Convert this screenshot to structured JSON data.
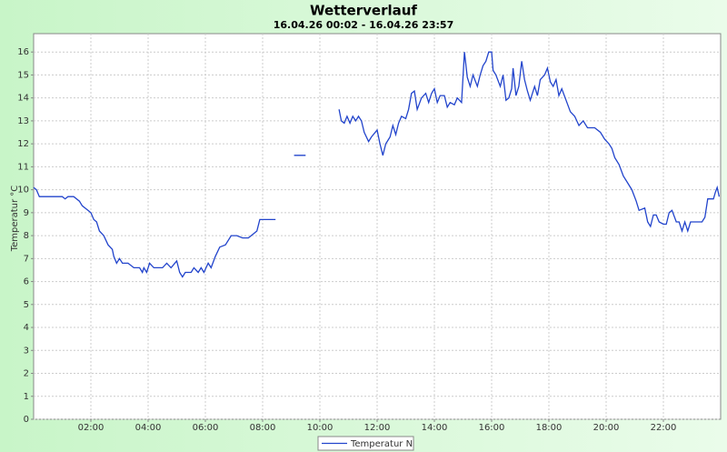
{
  "chart_data": {
    "type": "line",
    "title": "Wetterverlauf",
    "subtitle": "16.04.26 00:02 - 16.04.26 23:57",
    "y_label": "Temperatur °C",
    "x": [
      0.0,
      0.1,
      0.2,
      0.5,
      1.0,
      1.1,
      1.2,
      1.4,
      1.6,
      1.7,
      1.9,
      2.0,
      2.1,
      2.2,
      2.3,
      2.45,
      2.6,
      2.75,
      2.8,
      2.9,
      3.0,
      3.1,
      3.3,
      3.5,
      3.7,
      3.8,
      3.85,
      3.95,
      4.05,
      4.2,
      4.5,
      4.65,
      4.8,
      5.0,
      5.1,
      5.2,
      5.3,
      5.5,
      5.6,
      5.75,
      5.85,
      5.95,
      6.1,
      6.2,
      6.35,
      6.5,
      6.7,
      6.9,
      7.1,
      7.3,
      7.5,
      7.6,
      7.8,
      7.9,
      8.3,
      8.45,
      8.8,
      9.1,
      9.5,
      10.0,
      10.67,
      10.75,
      10.85,
      10.95,
      11.05,
      11.15,
      11.25,
      11.35,
      11.45,
      11.55,
      11.7,
      11.8,
      12.0,
      12.1,
      12.2,
      12.3,
      12.45,
      12.55,
      12.65,
      12.75,
      12.85,
      13.0,
      13.1,
      13.2,
      13.3,
      13.4,
      13.55,
      13.7,
      13.8,
      13.9,
      14.0,
      14.1,
      14.2,
      14.35,
      14.45,
      14.55,
      14.7,
      14.8,
      14.95,
      15.05,
      15.15,
      15.25,
      15.35,
      15.5,
      15.6,
      15.7,
      15.8,
      15.9,
      16.0,
      16.05,
      16.15,
      16.3,
      16.4,
      16.5,
      16.6,
      16.7,
      16.75,
      16.85,
      16.95,
      17.05,
      17.15,
      17.25,
      17.35,
      17.5,
      17.6,
      17.7,
      17.85,
      17.95,
      18.05,
      18.15,
      18.25,
      18.35,
      18.45,
      18.6,
      18.75,
      18.9,
      19.05,
      19.2,
      19.35,
      19.6,
      19.8,
      19.95,
      20.1,
      20.2,
      20.3,
      20.45,
      20.6,
      20.75,
      20.9,
      21.05,
      21.15,
      21.35,
      21.45,
      21.55,
      21.65,
      21.75,
      21.85,
      22.0,
      22.1,
      22.2,
      22.3,
      22.45,
      22.55,
      22.65,
      22.75,
      22.85,
      22.95,
      23.1,
      23.35,
      23.45,
      23.55,
      23.75,
      23.82,
      23.88,
      23.95
    ],
    "series": [
      {
        "name": "Temperatur N",
        "color": "#2244cc",
        "values": [
          10.1,
          10.0,
          9.7,
          9.7,
          9.7,
          9.6,
          9.7,
          9.7,
          9.5,
          9.3,
          9.1,
          9.0,
          8.7,
          8.6,
          8.2,
          8.0,
          7.6,
          7.4,
          7.1,
          6.8,
          7.0,
          6.8,
          6.8,
          6.6,
          6.6,
          6.4,
          6.6,
          6.4,
          6.8,
          6.6,
          6.6,
          6.8,
          6.6,
          6.9,
          6.4,
          6.2,
          6.4,
          6.4,
          6.6,
          6.4,
          6.6,
          6.4,
          6.8,
          6.6,
          7.1,
          7.5,
          7.6,
          8.0,
          8.0,
          7.9,
          7.9,
          8.0,
          8.2,
          8.7,
          8.7,
          8.7,
          null,
          11.5,
          11.5,
          null,
          13.5,
          13.0,
          12.9,
          13.2,
          12.9,
          13.2,
          13.0,
          13.2,
          13.0,
          12.5,
          12.1,
          12.3,
          12.6,
          12.0,
          11.5,
          12.0,
          12.3,
          12.8,
          12.4,
          12.9,
          13.2,
          13.1,
          13.5,
          14.2,
          14.3,
          13.5,
          14.0,
          14.2,
          13.8,
          14.2,
          14.4,
          13.8,
          14.1,
          14.1,
          13.6,
          13.8,
          13.7,
          14.0,
          13.8,
          16.0,
          14.9,
          14.5,
          15.0,
          14.5,
          15.0,
          15.4,
          15.6,
          16.0,
          16.0,
          15.2,
          15.0,
          14.5,
          15.0,
          13.9,
          14.0,
          14.4,
          15.3,
          14.1,
          14.5,
          15.6,
          14.8,
          14.3,
          13.9,
          14.5,
          14.1,
          14.8,
          15.0,
          15.3,
          14.7,
          14.5,
          14.8,
          14.1,
          14.4,
          13.9,
          13.4,
          13.2,
          12.8,
          13.0,
          12.7,
          12.7,
          12.5,
          12.2,
          12.0,
          11.8,
          11.4,
          11.1,
          10.6,
          10.3,
          10.0,
          9.5,
          9.1,
          9.2,
          8.6,
          8.4,
          8.9,
          8.9,
          8.6,
          8.5,
          8.5,
          9.0,
          9.1,
          8.6,
          8.6,
          8.2,
          8.6,
          8.2,
          8.6,
          8.6,
          8.6,
          8.8,
          9.6,
          9.6,
          9.9,
          10.1,
          9.7
        ]
      }
    ],
    "xlim": [
      0,
      24
    ],
    "xticks": [
      {
        "value": 2,
        "label": "02:00"
      },
      {
        "value": 4,
        "label": "04:00"
      },
      {
        "value": 6,
        "label": "06:00"
      },
      {
        "value": 8,
        "label": "08:00"
      },
      {
        "value": 10,
        "label": "10:00"
      },
      {
        "value": 12,
        "label": "12:00"
      },
      {
        "value": 14,
        "label": "14:00"
      },
      {
        "value": 16,
        "label": "16:00"
      },
      {
        "value": 18,
        "label": "18:00"
      },
      {
        "value": 20,
        "label": "20:00"
      },
      {
        "value": 22,
        "label": "22:00"
      }
    ],
    "ylim": [
      0,
      16.8
    ],
    "yticks": [
      0,
      1,
      2,
      3,
      4,
      5,
      6,
      7,
      8,
      9,
      10,
      11,
      12,
      13,
      14,
      15,
      16
    ],
    "grid": true
  }
}
